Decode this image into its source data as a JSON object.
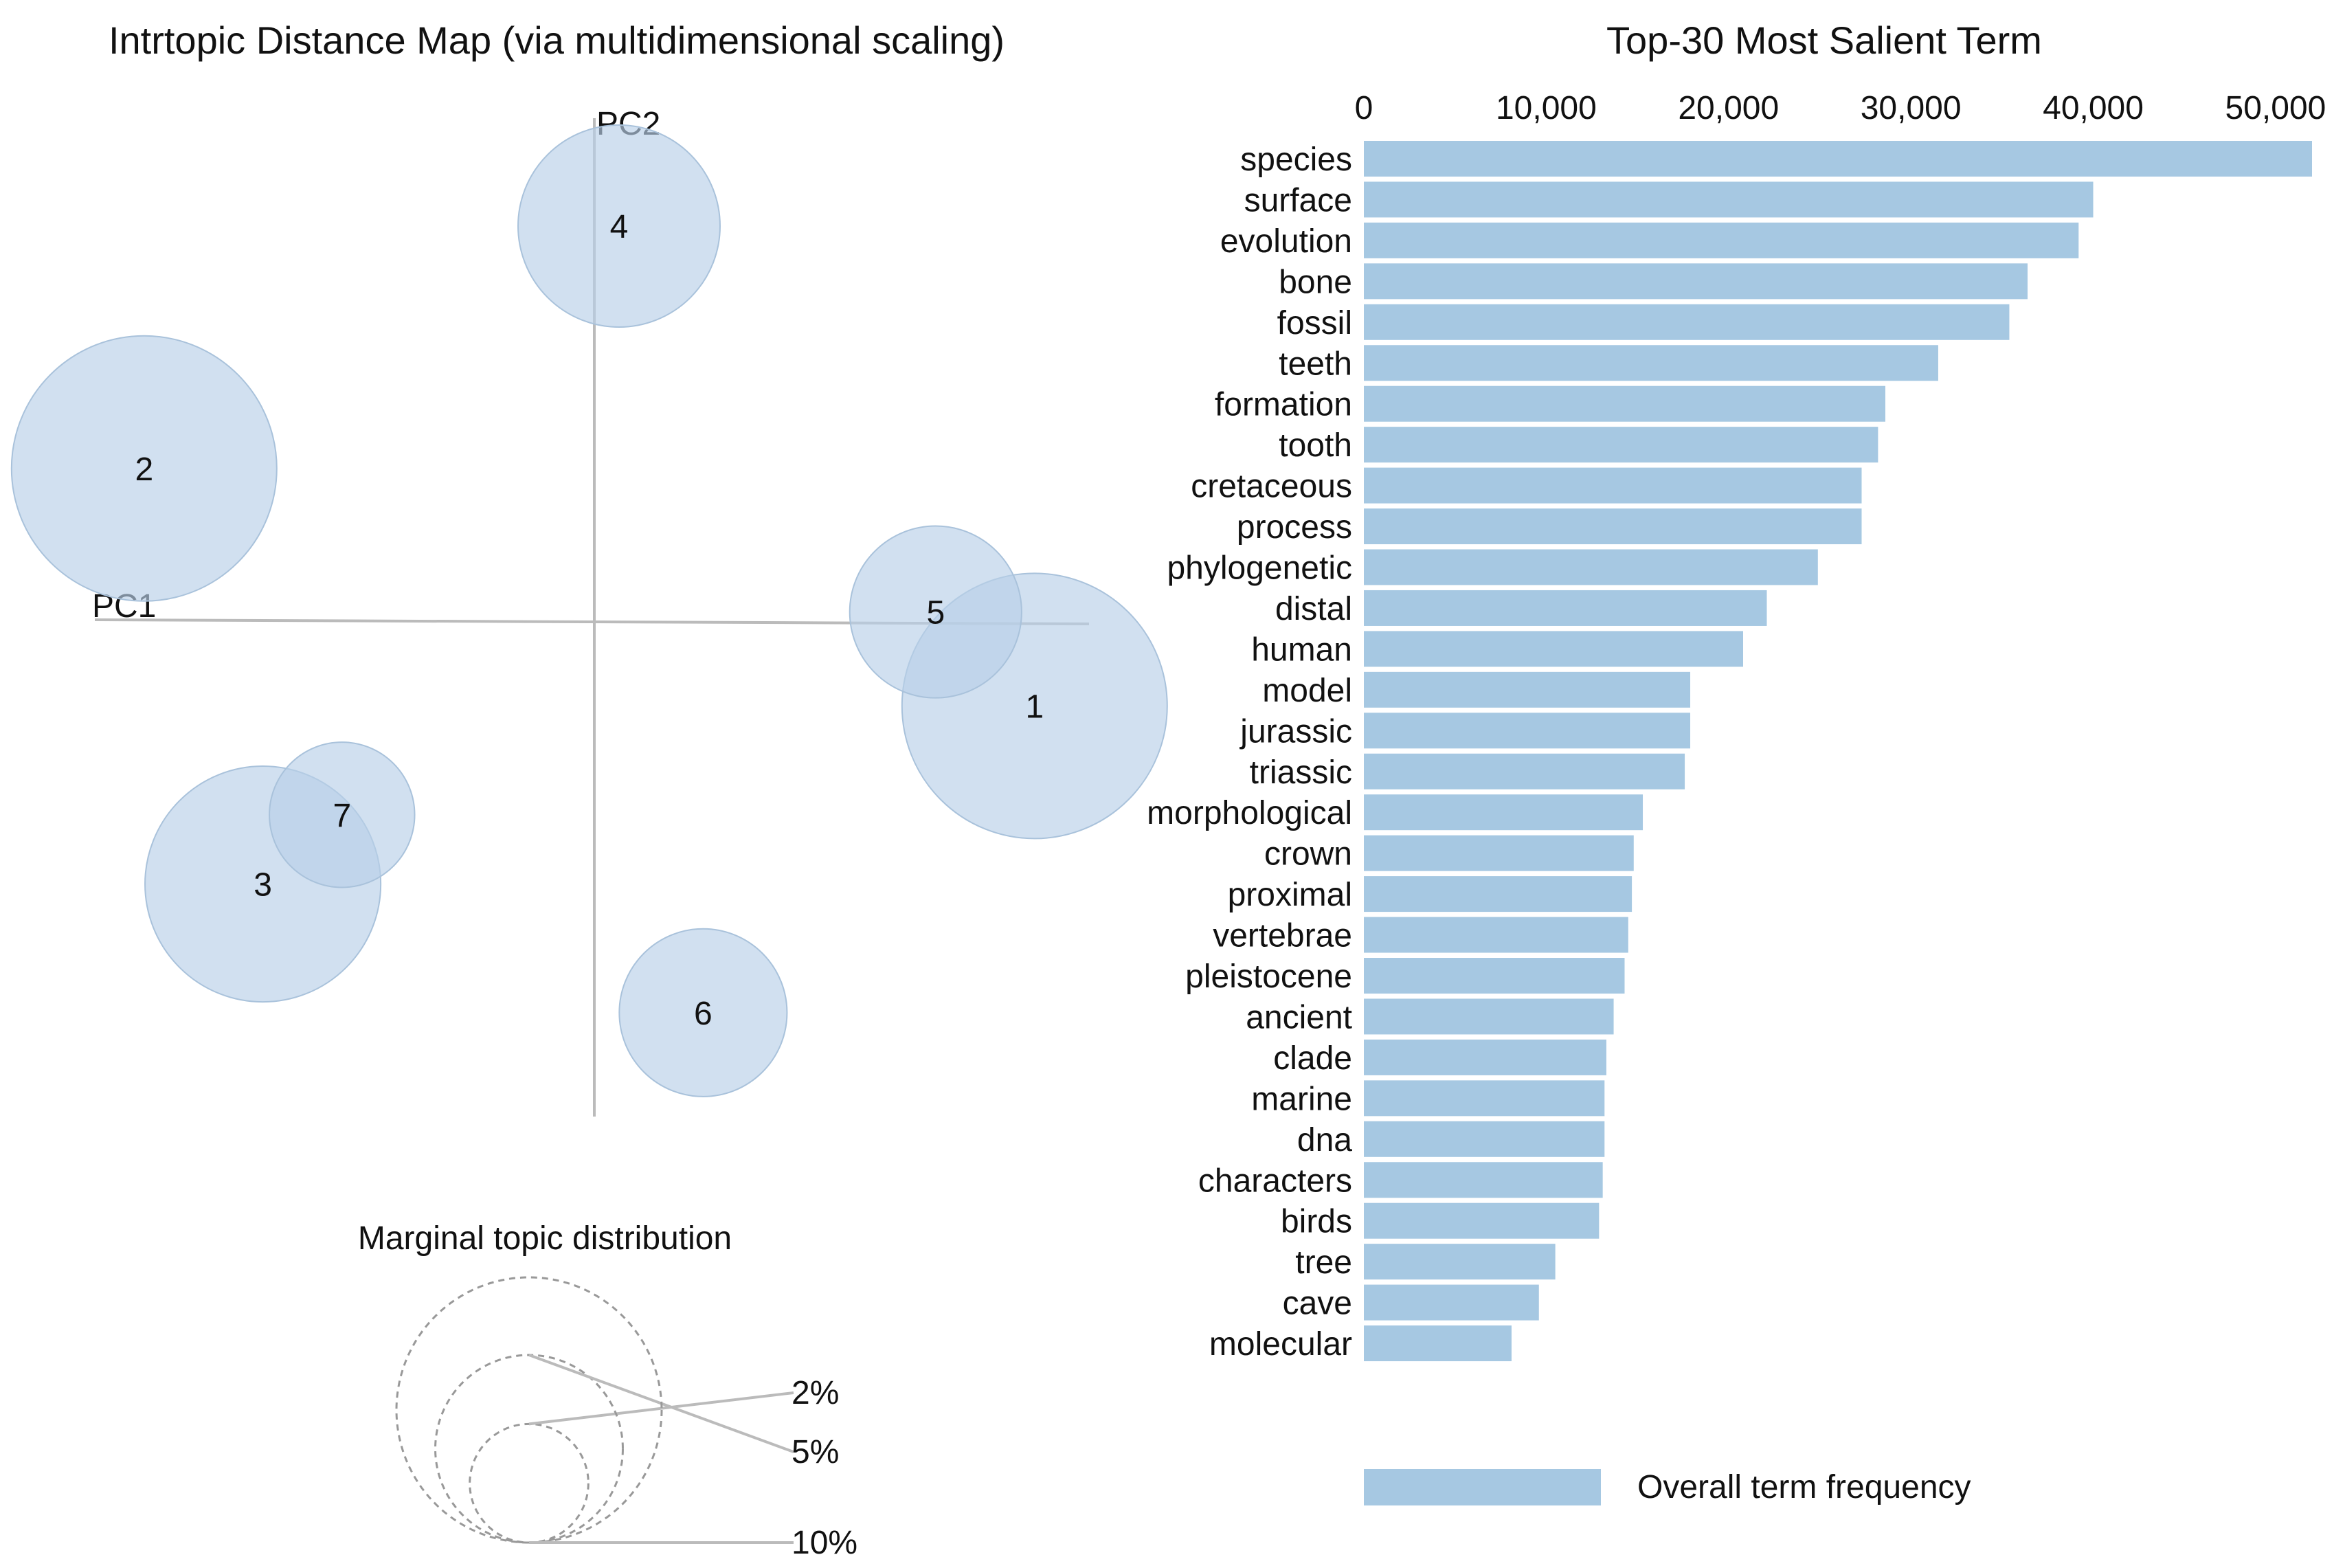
{
  "colors": {
    "bubble_fill": "#b8d0e8",
    "bar_fill": "#a6c8e2",
    "axis_line": "#bbbbbb",
    "dashed_circle": "#999999",
    "text": "#111111"
  },
  "chart_data": [
    {
      "type": "scatter",
      "title": "Intrtopic Distance Map (via multidimensional scaling)",
      "xlabel": "PC1",
      "ylabel": "PC2",
      "xlim": [
        -1,
        1
      ],
      "ylim": [
        -1,
        1
      ],
      "grid": false,
      "points": [
        {
          "topic": "1",
          "x": 0.89,
          "y": -0.17,
          "prevalence": 10.0
        },
        {
          "topic": "2",
          "x": -0.91,
          "y": 0.31,
          "prevalence": 10.0
        },
        {
          "topic": "3",
          "x": -0.67,
          "y": -0.53,
          "prevalence": 7.9
        },
        {
          "topic": "4",
          "x": 0.05,
          "y": 0.8,
          "prevalence": 5.8
        },
        {
          "topic": "5",
          "x": 0.69,
          "y": 0.02,
          "prevalence": 4.2
        },
        {
          "topic": "6",
          "x": 0.22,
          "y": -0.79,
          "prevalence": 4.0
        },
        {
          "topic": "7",
          "x": -0.51,
          "y": -0.39,
          "prevalence": 3.0
        }
      ],
      "legend": {
        "title": "Marginal topic distribution",
        "items": [
          {
            "label": "2%",
            "value": 2
          },
          {
            "label": "5%",
            "value": 5
          },
          {
            "label": "10%",
            "value": 10
          }
        ]
      }
    },
    {
      "type": "bar",
      "orientation": "horizontal",
      "title": "Top-30 Most Salient Term",
      "xlim": [
        0,
        52000
      ],
      "ticks": [
        {
          "value": 0,
          "label": "0"
        },
        {
          "value": 10000,
          "label": "10,000"
        },
        {
          "value": 20000,
          "label": "20,000"
        },
        {
          "value": 30000,
          "label": "30,000"
        },
        {
          "value": 40000,
          "label": "40,000"
        },
        {
          "value": 50000,
          "label": "50,000"
        }
      ],
      "categories": [
        "species",
        "surface",
        "evolution",
        "bone",
        "fossil",
        "teeth",
        "formation",
        "tooth",
        "cretaceous",
        "process",
        "phylogenetic",
        "distal",
        "human",
        "model",
        "jurassic",
        "triassic",
        "morphological",
        "crown",
        "proximal",
        "vertebrae",
        "pleistocene",
        "ancient",
        "clade",
        "marine",
        "dna",
        "characters",
        "birds",
        "tree",
        "cave",
        "molecular"
      ],
      "values": [
        52000,
        40000,
        39200,
        36400,
        35400,
        31500,
        28600,
        28200,
        27300,
        27300,
        24900,
        22100,
        20800,
        17900,
        17900,
        17600,
        15300,
        14800,
        14700,
        14500,
        14300,
        13700,
        13300,
        13200,
        13200,
        13100,
        12900,
        10500,
        9600,
        8100
      ],
      "legend": {
        "label": "Overall term frequency"
      }
    }
  ]
}
